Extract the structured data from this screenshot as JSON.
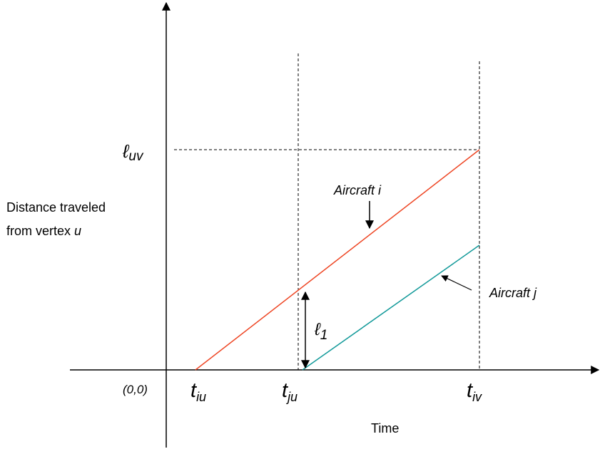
{
  "labels": {
    "l_uv_base": "ℓ",
    "l_uv_sub": "uv",
    "l_1_base": "ℓ",
    "l_1_sub": "1",
    "y_axis_line1": "Distance traveled",
    "y_axis_line2": "from vertex ",
    "y_axis_var": "u",
    "origin": "(0,0)",
    "t_iu_base": "t",
    "t_iu_sub": "iu",
    "t_ju_base": "t",
    "t_ju_sub": "ju",
    "t_iv_base": "t",
    "t_iv_sub": "iv",
    "x_axis": "Time",
    "aircraft_i": "Aircraft i",
    "aircraft_j": "Aircraft j"
  },
  "colors": {
    "aircraft_i": "#ee4422",
    "aircraft_j": "#119999",
    "axis": "#000000"
  }
}
